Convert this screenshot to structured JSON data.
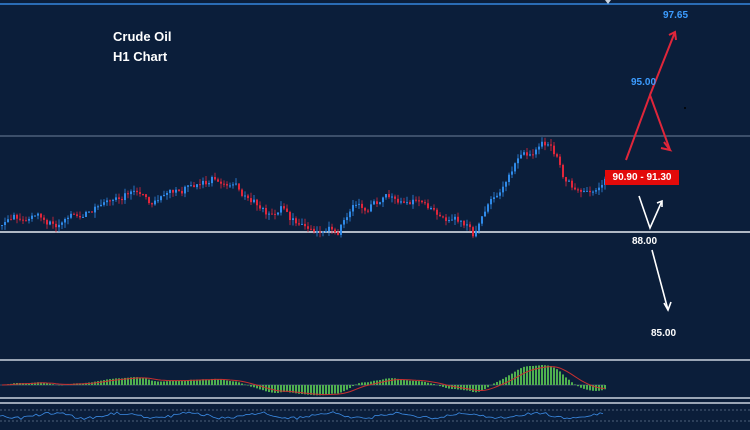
{
  "header": {
    "title": "Crude Oil",
    "subtitle": "H1 Chart"
  },
  "levels": {
    "target_high": "97.65",
    "resistance": "95.00",
    "entry_zone": "90.90 - 91.30",
    "support": "88.00",
    "target_low": "85.00"
  },
  "colors": {
    "background": "#0b1e3a",
    "bull_candle": "#2f8ae8",
    "bear_candle": "#e0263a",
    "level_line": "#e8ecf2",
    "forecast_up": "#e0263a",
    "forecast_down": "#ffffff",
    "level_text": "#3c9cff",
    "histogram": "#4fb04f",
    "signal_line": "#c83030",
    "oscillator": "#3c8ce6"
  },
  "chart_data": {
    "type": "candlestick",
    "title": "Crude Oil",
    "subtitle": "H1 Chart",
    "ylim": [
      83.5,
      99
    ],
    "horizontal_levels": [
      91.5,
      88.0
    ],
    "price_path": [
      89.2,
      89.4,
      89.6,
      89.4,
      89.5,
      89.7,
      89.4,
      89.3,
      89.2,
      89.5,
      89.7,
      89.5,
      89.7,
      89.8,
      90.0,
      90.2,
      90.4,
      90.3,
      90.6,
      90.9,
      90.6,
      90.5,
      90.1,
      90.4,
      90.7,
      90.8,
      90.7,
      90.9,
      91.0,
      91.1,
      91.2,
      91.3,
      91.2,
      91.1,
      91.1,
      90.6,
      90.4,
      90.2,
      89.9,
      89.6,
      89.7,
      90.1,
      89.5,
      89.3,
      89.2,
      89.0,
      88.9,
      89.0,
      89.1,
      88.8,
      89.5,
      90.0,
      90.2,
      89.8,
      90.1,
      90.3,
      90.5,
      90.4,
      90.2,
      90.1,
      90.4,
      90.3,
      90.0,
      89.8,
      89.6,
      89.4,
      89.6,
      89.3,
      89.1,
      88.7,
      89.5,
      90.2,
      90.5,
      90.8,
      91.4,
      92.1,
      92.6,
      92.3,
      92.6,
      93.0,
      92.8,
      92.2,
      91.4,
      91.0,
      90.8,
      90.7,
      90.7,
      90.7,
      91.4
    ]
  }
}
